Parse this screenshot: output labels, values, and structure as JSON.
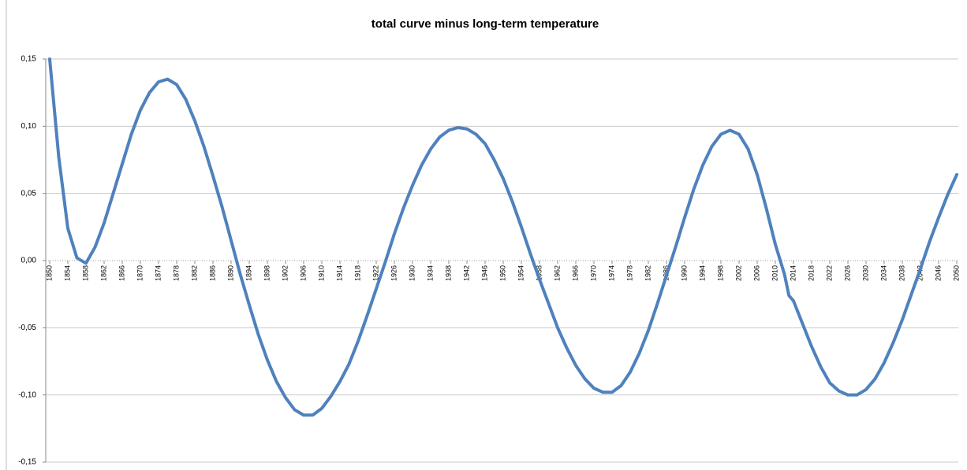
{
  "chart_data": {
    "type": "line",
    "title": "total curve minus long-term temperature",
    "x": [
      1850,
      1852,
      1854,
      1856,
      1858,
      1860,
      1862,
      1864,
      1866,
      1868,
      1870,
      1872,
      1874,
      1876,
      1878,
      1880,
      1882,
      1884,
      1886,
      1888,
      1890,
      1892,
      1894,
      1896,
      1898,
      1900,
      1902,
      1904,
      1906,
      1908,
      1910,
      1912,
      1914,
      1916,
      1918,
      1920,
      1922,
      1924,
      1926,
      1928,
      1930,
      1932,
      1934,
      1936,
      1938,
      1940,
      1942,
      1944,
      1946,
      1948,
      1950,
      1952,
      1954,
      1956,
      1958,
      1960,
      1962,
      1964,
      1966,
      1968,
      1970,
      1972,
      1974,
      1976,
      1978,
      1980,
      1982,
      1984,
      1986,
      1988,
      1990,
      1992,
      1994,
      1996,
      1998,
      2000,
      2002,
      2004,
      2006,
      2008,
      2010,
      2012,
      2013,
      2014,
      2016,
      2018,
      2020,
      2022,
      2024,
      2026,
      2028,
      2030,
      2032,
      2034,
      2036,
      2038,
      2040,
      2042,
      2044,
      2046,
      2048,
      2050
    ],
    "values": [
      0.15,
      0.077,
      0.024,
      0.002,
      -0.002,
      0.01,
      0.028,
      0.05,
      0.072,
      0.094,
      0.112,
      0.125,
      0.133,
      0.135,
      0.131,
      0.12,
      0.104,
      0.085,
      0.063,
      0.04,
      0.015,
      -0.01,
      -0.033,
      -0.055,
      -0.074,
      -0.09,
      -0.102,
      -0.111,
      -0.115,
      -0.115,
      -0.11,
      -0.101,
      -0.09,
      -0.077,
      -0.06,
      -0.041,
      -0.021,
      -0.001,
      0.02,
      0.039,
      0.056,
      0.071,
      0.083,
      0.092,
      0.097,
      0.099,
      0.098,
      0.094,
      0.087,
      0.075,
      0.061,
      0.044,
      0.025,
      0.005,
      -0.014,
      -0.032,
      -0.05,
      -0.065,
      -0.078,
      -0.088,
      -0.095,
      -0.098,
      -0.098,
      -0.093,
      -0.083,
      -0.069,
      -0.052,
      -0.032,
      -0.011,
      0.01,
      0.032,
      0.053,
      0.071,
      0.085,
      0.094,
      0.097,
      0.094,
      0.083,
      0.064,
      0.039,
      0.012,
      -0.01,
      -0.026,
      -0.03,
      -0.047,
      -0.064,
      -0.079,
      -0.091,
      -0.097,
      -0.1,
      -0.1,
      -0.096,
      -0.088,
      -0.076,
      -0.061,
      -0.044,
      -0.025,
      -0.006,
      0.014,
      0.032,
      0.049,
      0.064
    ],
    "color": "#4f81bd",
    "xlim": [
      1850,
      2050
    ],
    "xticks": [
      1850,
      1854,
      1858,
      1862,
      1866,
      1870,
      1874,
      1878,
      1882,
      1886,
      1890,
      1894,
      1898,
      1902,
      1906,
      1910,
      1914,
      1918,
      1922,
      1926,
      1930,
      1934,
      1938,
      1942,
      1946,
      1950,
      1954,
      1958,
      1962,
      1966,
      1970,
      1974,
      1978,
      1982,
      1986,
      1990,
      1994,
      1998,
      2002,
      2006,
      2010,
      2014,
      2018,
      2022,
      2026,
      2030,
      2034,
      2038,
      2042,
      2046,
      2050
    ],
    "ylim": [
      -0.15,
      0.15
    ],
    "yticks": [
      {
        "value": -0.15,
        "label": "-0,15"
      },
      {
        "value": -0.1,
        "label": "-0,10"
      },
      {
        "value": -0.05,
        "label": "-0,05"
      },
      {
        "value": 0,
        "label": "0,00"
      },
      {
        "value": 0.05,
        "label": "0,05"
      },
      {
        "value": 0.1,
        "label": "0,10"
      },
      {
        "value": 0.15,
        "label": "0,15"
      }
    ],
    "grid": true
  }
}
